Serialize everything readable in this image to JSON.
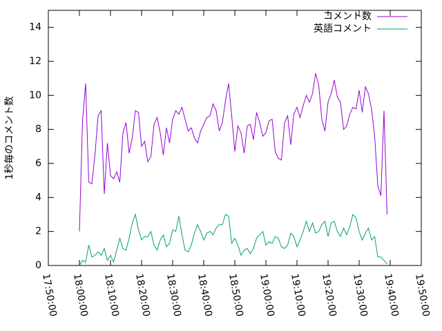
{
  "chart_data": {
    "type": "line",
    "y_label": "1秒毎のコメント数",
    "legend": "top-right",
    "grid": false,
    "xlim": [
      "17:50:00",
      "19:50:00"
    ],
    "xticks": [
      "17:50:00",
      "18:00:00",
      "18:10:00",
      "18:20:00",
      "18:30:00",
      "18:40:00",
      "18:50:00",
      "19:00:00",
      "19:10:00",
      "19:20:00",
      "19:30:00",
      "19:40:00",
      "19:50:00"
    ],
    "ylim": [
      0,
      15
    ],
    "yticks": [
      0,
      2,
      4,
      6,
      8,
      10,
      12,
      14
    ],
    "x": [
      "18:00:00",
      "18:01:00",
      "18:02:00",
      "18:03:00",
      "18:04:00",
      "18:05:00",
      "18:06:00",
      "18:07:00",
      "18:08:00",
      "18:09:00",
      "18:10:00",
      "18:11:00",
      "18:12:00",
      "18:13:00",
      "18:14:00",
      "18:15:00",
      "18:16:00",
      "18:17:00",
      "18:18:00",
      "18:19:00",
      "18:20:00",
      "18:21:00",
      "18:22:00",
      "18:23:00",
      "18:24:00",
      "18:25:00",
      "18:26:00",
      "18:27:00",
      "18:28:00",
      "18:29:00",
      "18:30:00",
      "18:31:00",
      "18:32:00",
      "18:33:00",
      "18:34:00",
      "18:35:00",
      "18:36:00",
      "18:37:00",
      "18:38:00",
      "18:39:00",
      "18:40:00",
      "18:41:00",
      "18:42:00",
      "18:43:00",
      "18:44:00",
      "18:45:00",
      "18:46:00",
      "18:47:00",
      "18:48:00",
      "18:49:00",
      "18:50:00",
      "18:51:00",
      "18:52:00",
      "18:53:00",
      "18:54:00",
      "18:55:00",
      "18:56:00",
      "18:57:00",
      "18:58:00",
      "18:59:00",
      "19:00:00",
      "19:01:00",
      "19:02:00",
      "19:03:00",
      "19:04:00",
      "19:05:00",
      "19:06:00",
      "19:07:00",
      "19:08:00",
      "19:09:00",
      "19:10:00",
      "19:11:00",
      "19:12:00",
      "19:13:00",
      "19:14:00",
      "19:15:00",
      "19:16:00",
      "19:17:00",
      "19:18:00",
      "19:19:00",
      "19:20:00",
      "19:21:00",
      "19:22:00",
      "19:23:00",
      "19:24:00",
      "19:25:00",
      "19:26:00",
      "19:27:00",
      "19:28:00",
      "19:29:00",
      "19:30:00",
      "19:31:00",
      "19:32:00",
      "19:33:00",
      "19:34:00",
      "19:35:00",
      "19:36:00",
      "19:37:00",
      "19:38:00",
      "19:39:00"
    ],
    "series": [
      {
        "name": "コメント数",
        "color": "#9400d3",
        "values": [
          2.0,
          8.5,
          10.7,
          4.9,
          4.8,
          6.5,
          8.8,
          9.1,
          4.2,
          7.2,
          5.3,
          5.1,
          5.5,
          4.9,
          7.8,
          8.4,
          6.6,
          7.5,
          9.1,
          9.0,
          7.0,
          7.3,
          6.1,
          6.4,
          8.3,
          8.7,
          7.8,
          6.5,
          8.1,
          7.2,
          8.6,
          9.1,
          8.9,
          9.3,
          8.6,
          7.9,
          8.1,
          7.5,
          7.2,
          7.9,
          8.3,
          8.7,
          8.8,
          9.5,
          9.1,
          7.9,
          8.4,
          9.7,
          10.7,
          8.8,
          6.7,
          8.2,
          7.8,
          6.6,
          8.2,
          8.3,
          7.4,
          9.0,
          8.4,
          7.6,
          7.8,
          8.5,
          8.6,
          6.7,
          6.3,
          6.2,
          8.4,
          8.8,
          7.1,
          8.9,
          9.3,
          8.7,
          9.4,
          10.0,
          9.6,
          10.1,
          11.3,
          10.6,
          8.6,
          7.9,
          9.6,
          10.1,
          10.9,
          9.9,
          9.6,
          8.0,
          8.2,
          8.9,
          9.3,
          9.2,
          10.3,
          9.0,
          10.5,
          10.1,
          9.2,
          7.6,
          4.7,
          4.1,
          9.1,
          3.0
        ]
      },
      {
        "name": "英語コメント",
        "color": "#009e73",
        "values": [
          0.0,
          0.3,
          0.2,
          1.2,
          0.5,
          0.6,
          0.8,
          0.6,
          1.0,
          0.3,
          0.6,
          0.2,
          0.9,
          1.6,
          1.0,
          0.9,
          1.6,
          2.5,
          3.0,
          2.1,
          1.5,
          1.7,
          1.7,
          2.0,
          1.2,
          0.9,
          1.5,
          1.8,
          1.1,
          1.3,
          2.1,
          2.0,
          2.9,
          1.8,
          0.9,
          0.8,
          1.2,
          1.9,
          2.4,
          2.0,
          1.5,
          1.9,
          2.0,
          1.8,
          2.2,
          2.4,
          2.4,
          3.0,
          2.9,
          1.3,
          1.6,
          1.2,
          0.6,
          0.9,
          1.0,
          0.7,
          1.0,
          1.6,
          1.8,
          2.0,
          1.2,
          1.4,
          1.3,
          1.7,
          1.6,
          1.1,
          1.0,
          1.2,
          1.9,
          1.7,
          1.1,
          1.5,
          2.0,
          2.6,
          2.0,
          2.5,
          1.9,
          2.0,
          2.4,
          2.6,
          1.7,
          2.5,
          2.6,
          2.0,
          1.7,
          2.2,
          1.8,
          2.3,
          3.0,
          2.8,
          2.0,
          1.5,
          1.9,
          2.2,
          1.5,
          1.7,
          0.5,
          0.5,
          0.3,
          0.1
        ]
      }
    ]
  }
}
